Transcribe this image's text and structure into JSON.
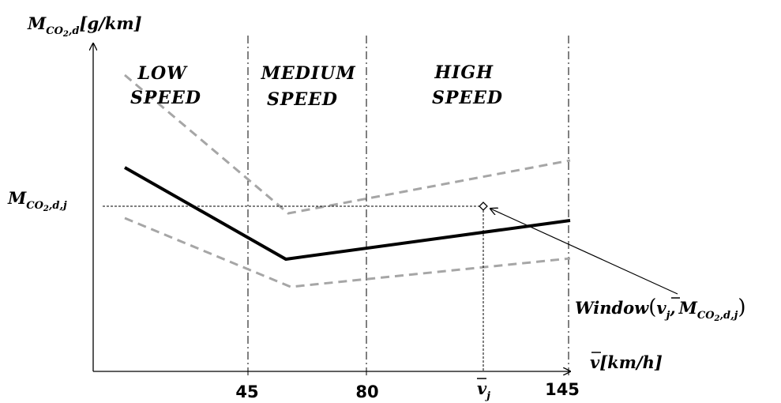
{
  "y_axis": {
    "label": "M",
    "sub": "CO",
    "subsub": "2",
    "sub_tail": ",d",
    "unit": "[g/km]"
  },
  "x_axis": {
    "label": "v",
    "unit": "[km/h]",
    "ticks": [
      "45",
      "80",
      "145"
    ],
    "vj": "v",
    "vj_sub": "j"
  },
  "regions": {
    "low": [
      "LOW",
      "SPEED"
    ],
    "medium": [
      "MEDIUM",
      "SPEED"
    ],
    "high": [
      "HIGH",
      "SPEED"
    ]
  },
  "level_label": {
    "main": "M",
    "sub": "CO",
    "subsub": "2",
    "sub_tail": ",d,j"
  },
  "window_label": {
    "word": "Window",
    "v": "v",
    "v_sub": "j",
    "sep": ",",
    "m": "M",
    "m_sub": "CO",
    "m_subsub": "2",
    "m_sub_tail": ",d,j"
  },
  "colors": {
    "main_curve": "#000000",
    "bound_curves": "#a6a6a6"
  }
}
